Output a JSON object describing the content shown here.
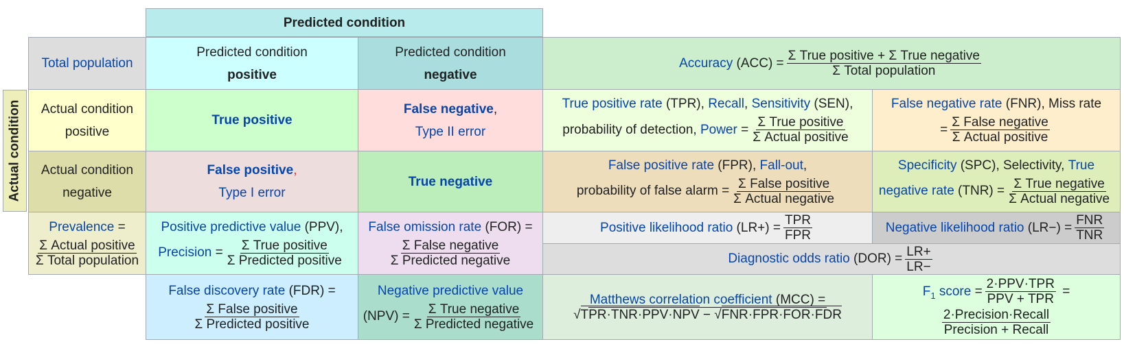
{
  "header": {
    "predicted_condition": "Predicted condition"
  },
  "actual_condition": "Actual condition",
  "total_population": "Total population",
  "pred_pos": {
    "line1": "Predicted condition",
    "line2": "positive"
  },
  "pred_neg": {
    "line1": "Predicted condition",
    "line2": "negative"
  },
  "accuracy": {
    "name": "Accuracy",
    "abbr": " (ACC) =",
    "num": "Σ True positive + Σ True negative",
    "den": "Σ Total population"
  },
  "act_pos": {
    "line1": "Actual condition",
    "line2": "positive"
  },
  "act_neg": {
    "line1": "Actual condition",
    "line2": "negative"
  },
  "tp": "True positive",
  "fn": {
    "name": "False negative",
    "comma": ",",
    "type": "Type II error"
  },
  "fp": {
    "name": "False positive",
    "comma": ",",
    "type": "Type I error"
  },
  "tn": "True negative",
  "tpr": {
    "name": "True positive rate",
    "abbr": " (TPR), ",
    "recall": "Recall",
    "sep": ", ",
    "sens": "Sensitivity",
    "sens_abbr": " (SEN),",
    "prob": "probability of detection, ",
    "power": "Power",
    "eq": " =",
    "num": "Σ True positive",
    "den": "Σ Actual positive"
  },
  "fnr": {
    "name": "False negative rate",
    "abbr": " (FNR), Miss rate",
    "eq": "=",
    "num": "Σ False negative",
    "den": "Σ Actual positive"
  },
  "fpr": {
    "name": "False positive rate",
    "abbr": " (FPR), ",
    "fallout": "Fall-out",
    "comma": ",",
    "prob": "probability of false alarm =",
    "num": "Σ False positive",
    "den": "Σ Actual negative"
  },
  "spc": {
    "name": "Specificity",
    "abbr": " (SPC), Selectivity, ",
    "true": "True",
    "neg_rate": "negative rate",
    "tnr": " (TNR) =",
    "num": "Σ True negative",
    "den": "Σ Actual negative"
  },
  "prevalence": {
    "name": "Prevalence",
    "eq": " =",
    "num": "Σ Actual positive",
    "den": "Σ Total population"
  },
  "ppv": {
    "name": "Positive predictive value",
    "abbr": " (PPV),",
    "precision": "Precision",
    "eq": " =",
    "num": "Σ True positive",
    "den": "Σ Predicted positive"
  },
  "for": {
    "name": "False omission rate",
    "abbr": " (FOR) =",
    "num": "Σ False negative",
    "den": "Σ Predicted negative"
  },
  "lrp": {
    "name": "Positive likelihood ratio",
    "abbr": " (LR+) =",
    "num": "TPR",
    "den": "FPR"
  },
  "lrn": {
    "name": "Negative likelihood ratio",
    "abbr": " (LR−) =",
    "num": "FNR",
    "den": "TNR"
  },
  "dor": {
    "name": "Diagnostic odds ratio",
    "abbr": " (DOR) =",
    "num": "LR+",
    "den": "LR−"
  },
  "fdr": {
    "name": "False discovery rate",
    "abbr": " (FDR) =",
    "num": "Σ False positive",
    "den": "Σ Predicted positive"
  },
  "npv": {
    "name": "Negative predictive value",
    "abbr": "(NPV) =",
    "num": "Σ True negative",
    "den": "Σ Predicted negative"
  },
  "mcc": {
    "name": "Matthews correlation coefficient",
    "abbr": " (MCC) =",
    "sqrt1": "TPR·TNR·PPV·NPV",
    "minus": " − ",
    "sqrt2": "FNR·FPR·FOR·FDR",
    "root": "√"
  },
  "f1": {
    "f": "F",
    "sub": "1",
    "score": " score",
    "eq": " =",
    "num1": "2·PPV·TPR",
    "den1": "PPV + TPR",
    "eq2": " =",
    "num2": "2·Precision·Recall",
    "den2": "Precision + Recall"
  },
  "colors": {
    "pred_header": "#b8ecec",
    "total": "#dddddd",
    "pred_pos": "#ccffff",
    "pred_neg": "#aadddd",
    "acc": "#cceecc",
    "act_pos": "#ffffcc",
    "act_neg": "#dddda9",
    "tp": "#ccffcc",
    "fn": "#ffdddd",
    "fp": "#eedddd",
    "tn": "#bbeebb",
    "tpr": "#eeffdd",
    "fnr": "#ffeecc",
    "fpr": "#eeddbb",
    "spc": "#ddeebb",
    "prev": "#eeeecc",
    "ppv": "#ccffee",
    "for": "#eeddee",
    "lrp": "#eeeeee",
    "lrn": "#cccccc",
    "dor": "#dddddd",
    "fdr": "#cceeff",
    "npv": "#aaddcc",
    "mcc": "#ddeedd",
    "f1": "#ddffdd"
  }
}
